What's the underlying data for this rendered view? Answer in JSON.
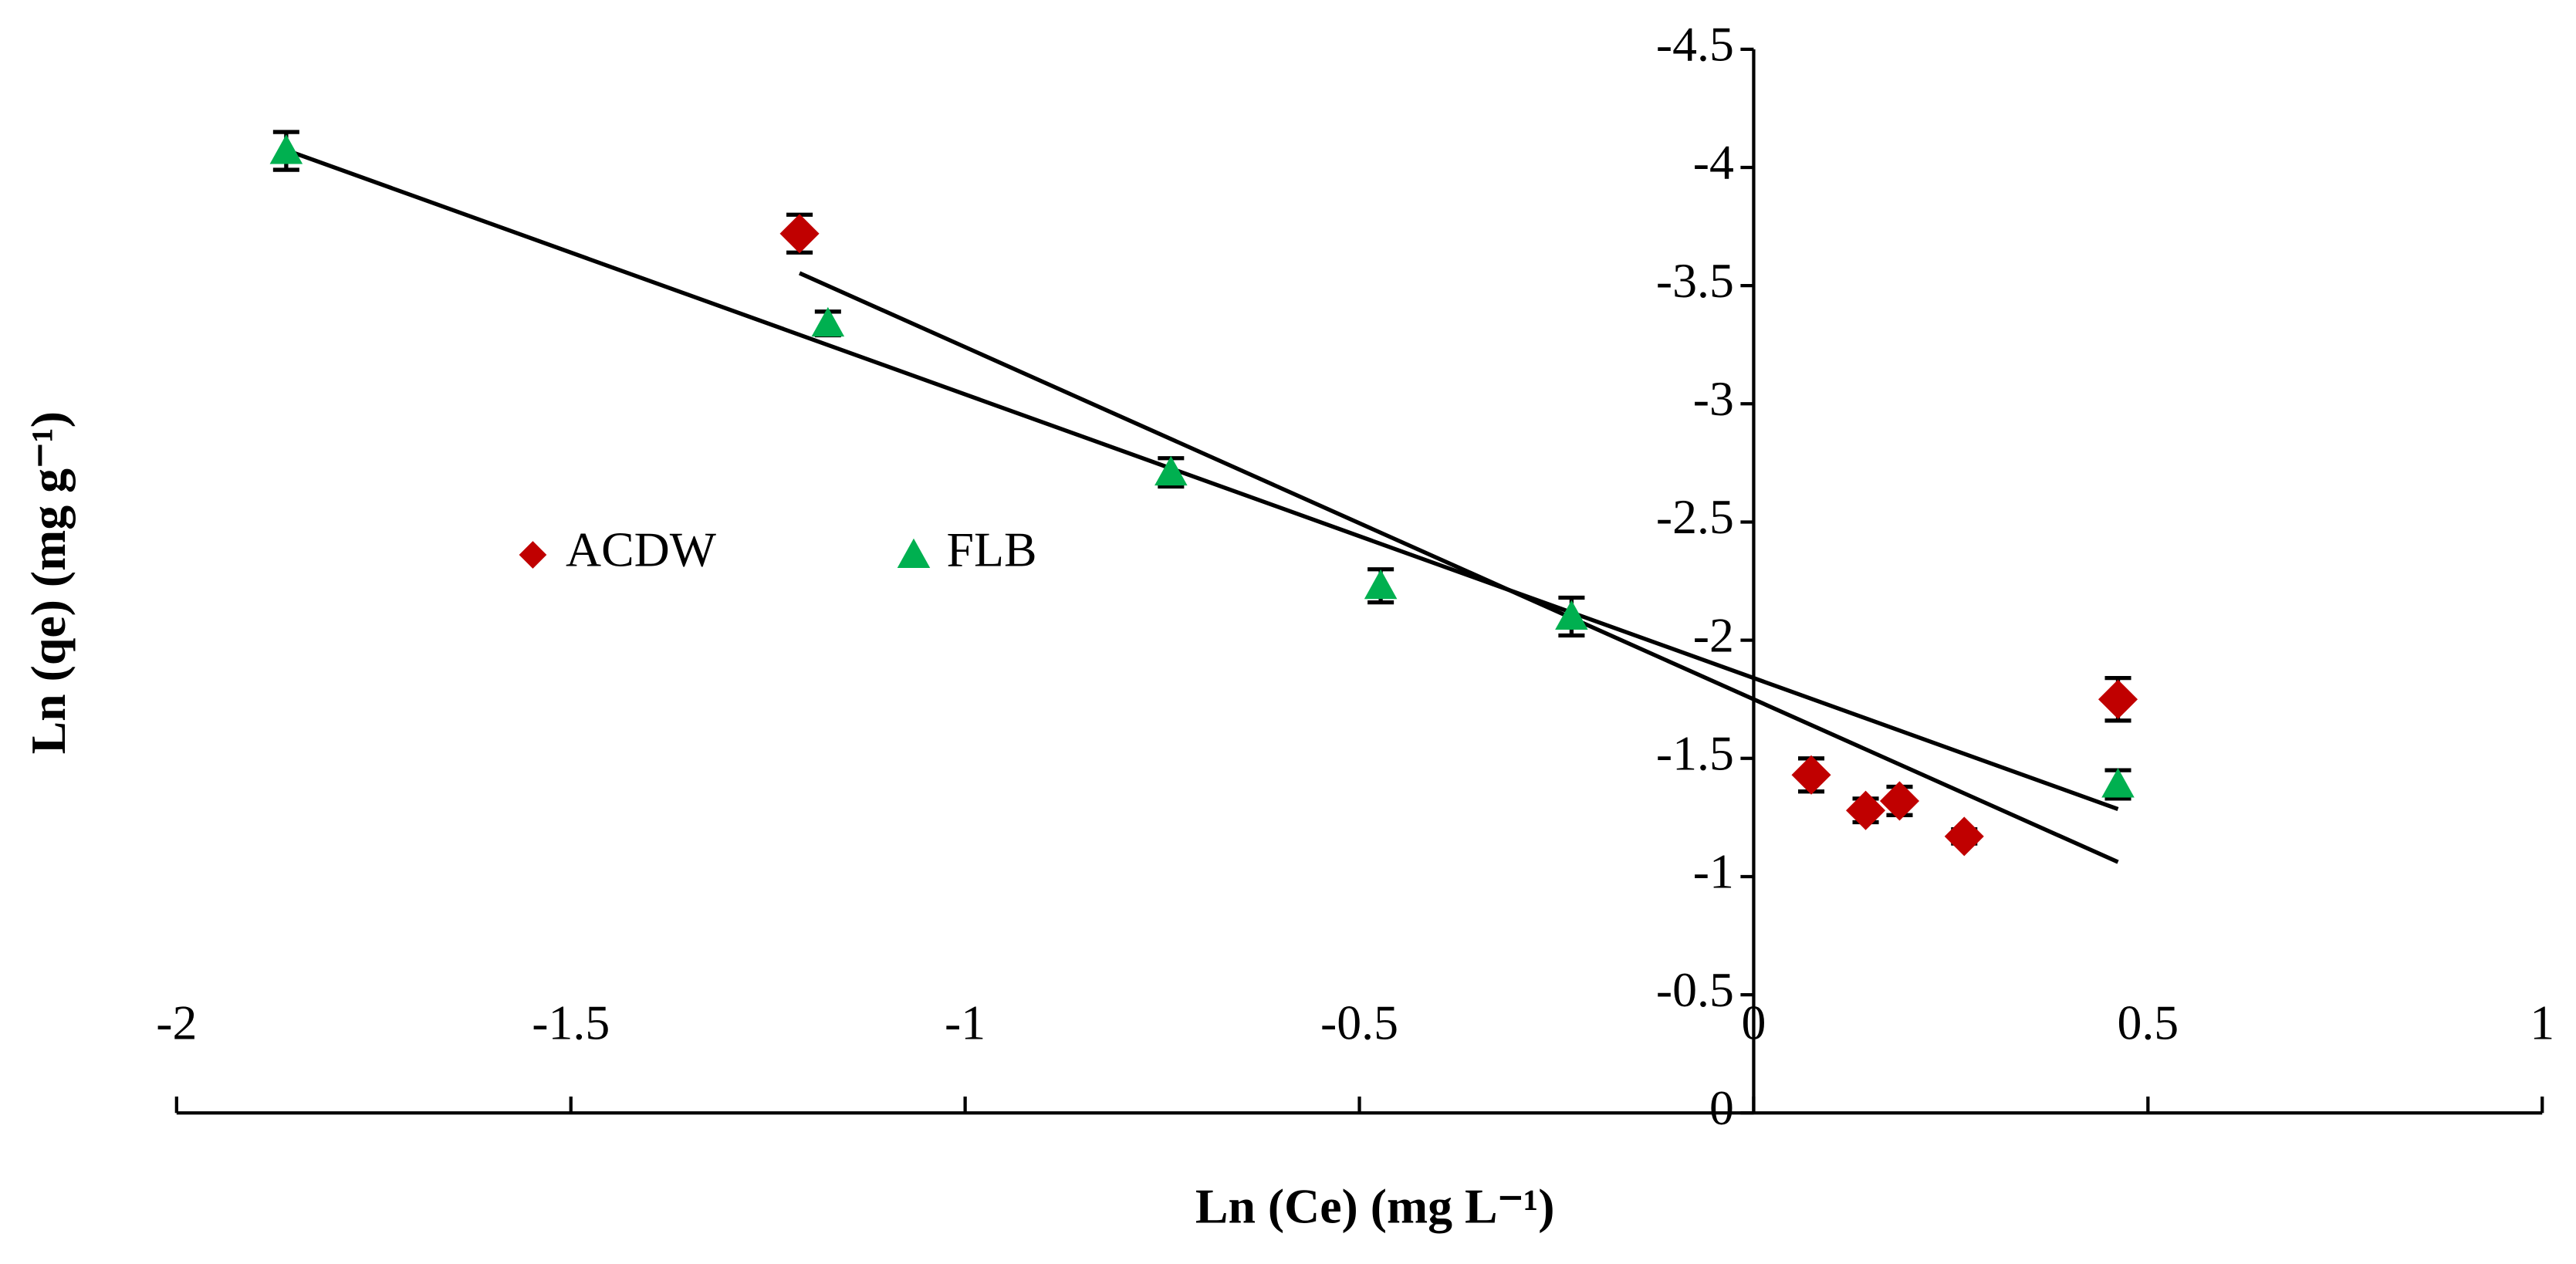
{
  "chart_data": {
    "type": "scatter",
    "x_label": "Ln (Ce) (mg L⁻¹)",
    "y_label": "Ln (qe) (mg g⁻¹)",
    "xlim": [
      -2,
      1
    ],
    "xticks": [
      -2,
      -1.5,
      -1,
      -0.5,
      0,
      0.5,
      1
    ],
    "ylim": [
      0,
      -4.5
    ],
    "yticks": [
      0,
      -0.5,
      -1,
      -1.5,
      -2,
      -2.5,
      -3,
      -3.5,
      -4,
      -4.5
    ],
    "legend": "inside-left",
    "series": [
      {
        "name": "ACDW",
        "color": "#c00000",
        "marker": "diamond",
        "x": [
          -1.21,
          0.073,
          0.142,
          0.185,
          0.267,
          0.462
        ],
        "values": [
          -3.72,
          -1.43,
          -1.28,
          -1.32,
          -1.17,
          -1.75
        ],
        "errors": [
          0.08,
          0.07,
          0.05,
          0.06,
          0.03,
          0.09
        ],
        "trendline": {
          "slope": 1.49,
          "intercept": -1.75
        }
      },
      {
        "name": "FLB",
        "color": "#00b050",
        "marker": "triangle",
        "x": [
          -1.861,
          -1.174,
          -0.739,
          -0.473,
          -0.231,
          0.462
        ],
        "values": [
          -4.07,
          -3.34,
          -2.71,
          -2.23,
          -2.1,
          -1.39
        ],
        "errors": [
          0.08,
          0.05,
          0.06,
          0.07,
          0.08,
          0.06
        ],
        "trendline": {
          "slope": 1.2,
          "intercept": -1.84
        }
      }
    ]
  }
}
